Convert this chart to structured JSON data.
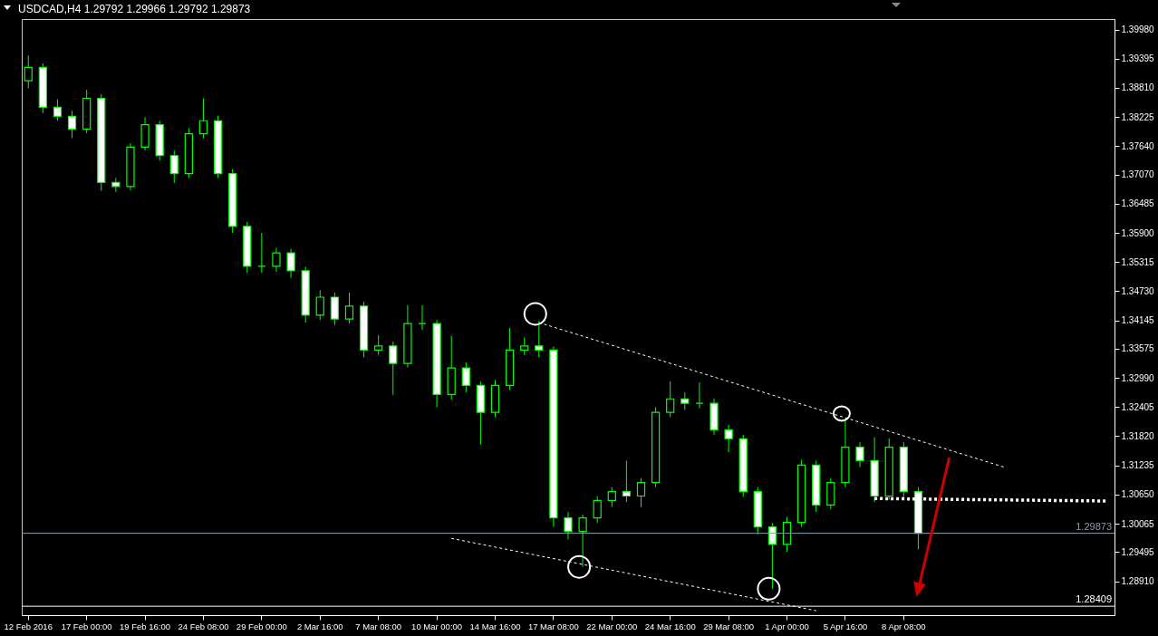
{
  "chart_data": {
    "type": "candlestick",
    "title": "USDCAD,H4  1.29792 1.29966 1.29792 1.29873",
    "color": "#00ff00",
    "categories": [
      "12 Feb 2016",
      null,
      null,
      null,
      "17 Feb 00:00",
      null,
      null,
      null,
      "19 Feb 16:00",
      null,
      null,
      null,
      "24 Feb 08:00",
      null,
      null,
      null,
      "29 Feb 00:00",
      null,
      null,
      null,
      "2 Mar 16:00",
      null,
      null,
      null,
      "7 Mar 08:00",
      null,
      null,
      null,
      "10 Mar 00:00",
      null,
      null,
      null,
      "14 Mar 16:00",
      null,
      null,
      null,
      "17 Mar 08:00",
      null,
      null,
      null,
      "22 Mar 00:00",
      null,
      null,
      null,
      "24 Mar 16:00",
      null,
      null,
      null,
      "29 Mar 08:00",
      null,
      null,
      null,
      "1 Apr 00:00",
      null,
      null,
      null,
      "5 Apr 16:00",
      null,
      null,
      null,
      "8 Apr 08:00",
      null,
      null,
      null,
      null,
      null,
      null,
      null,
      null,
      null,
      null,
      null,
      null,
      null,
      null
    ],
    "ohlc": [
      [
        1.3895,
        1.3946,
        1.388,
        1.3922
      ],
      [
        1.3922,
        1.393,
        1.383,
        1.3842
      ],
      [
        1.3842,
        1.3858,
        1.3815,
        1.3824
      ],
      [
        1.3824,
        1.3835,
        1.378,
        1.3798
      ],
      [
        1.3798,
        1.3877,
        1.379,
        1.386
      ],
      [
        1.386,
        1.3868,
        1.3674,
        1.3691
      ],
      [
        1.3691,
        1.37,
        1.3672,
        1.3683
      ],
      [
        1.3683,
        1.377,
        1.3675,
        1.3762
      ],
      [
        1.3762,
        1.3822,
        1.3755,
        1.3807
      ],
      [
        1.3807,
        1.3815,
        1.3735,
        1.3745
      ],
      [
        1.3745,
        1.3755,
        1.369,
        1.3709
      ],
      [
        1.3709,
        1.38,
        1.37,
        1.3789
      ],
      [
        1.3789,
        1.386,
        1.378,
        1.3815
      ],
      [
        1.3815,
        1.3825,
        1.37,
        1.3709
      ],
      [
        1.3709,
        1.3718,
        1.359,
        1.3603
      ],
      [
        1.3603,
        1.3612,
        1.351,
        1.3523
      ],
      [
        1.3523,
        1.359,
        1.351,
        1.3523
      ],
      [
        1.3523,
        1.356,
        1.3512,
        1.355
      ],
      [
        1.355,
        1.3558,
        1.35,
        1.3514
      ],
      [
        1.3514,
        1.3522,
        1.341,
        1.3425
      ],
      [
        1.3425,
        1.3475,
        1.3415,
        1.3461
      ],
      [
        1.3461,
        1.347,
        1.3405,
        1.3417
      ],
      [
        1.3417,
        1.347,
        1.3408,
        1.3443
      ],
      [
        1.3443,
        1.3452,
        1.334,
        1.3355
      ],
      [
        1.3355,
        1.3385,
        1.3345,
        1.3363
      ],
      [
        1.3363,
        1.3372,
        1.3265,
        1.3328
      ],
      [
        1.3328,
        1.3445,
        1.332,
        1.3408
      ],
      [
        1.3408,
        1.3445,
        1.3395,
        1.3408
      ],
      [
        1.3408,
        1.3415,
        1.324,
        1.3266
      ],
      [
        1.3266,
        1.3383,
        1.3255,
        1.3319
      ],
      [
        1.3319,
        1.333,
        1.327,
        1.3284
      ],
      [
        1.3284,
        1.3292,
        1.3165,
        1.323
      ],
      [
        1.323,
        1.3295,
        1.322,
        1.3284
      ],
      [
        1.3284,
        1.3399,
        1.3275,
        1.3355
      ],
      [
        1.3355,
        1.338,
        1.3345,
        1.3363
      ],
      [
        1.3363,
        1.3413,
        1.334,
        1.3355
      ],
      [
        1.3355,
        1.3362,
        1.3,
        1.3018
      ],
      [
        1.3018,
        1.303,
        1.2975,
        1.2991
      ],
      [
        1.2991,
        1.3025,
        1.292,
        1.3018
      ],
      [
        1.3018,
        1.3062,
        1.3008,
        1.3053
      ],
      [
        1.3053,
        1.308,
        1.304,
        1.3071
      ],
      [
        1.3071,
        1.3133,
        1.305,
        1.3062
      ],
      [
        1.3062,
        1.3098,
        1.304,
        1.3089
      ],
      [
        1.3089,
        1.324,
        1.308,
        1.323
      ],
      [
        1.323,
        1.3292,
        1.322,
        1.3257
      ],
      [
        1.3257,
        1.327,
        1.3235,
        1.3248
      ],
      [
        1.3248,
        1.329,
        1.3238,
        1.3248
      ],
      [
        1.3248,
        1.3258,
        1.3185,
        1.3195
      ],
      [
        1.3195,
        1.3205,
        1.315,
        1.3177
      ],
      [
        1.3177,
        1.3185,
        1.306,
        1.3071
      ],
      [
        1.3071,
        1.308,
        1.2985,
        1.3
      ],
      [
        1.3,
        1.3008,
        1.2876,
        1.2965
      ],
      [
        1.2965,
        1.302,
        1.295,
        1.3009
      ],
      [
        1.3009,
        1.3135,
        1.3,
        1.3124
      ],
      [
        1.3124,
        1.3133,
        1.303,
        1.3044
      ],
      [
        1.3044,
        1.3098,
        1.3035,
        1.3089
      ],
      [
        1.3089,
        1.3213,
        1.308,
        1.316
      ],
      [
        1.316,
        1.317,
        1.312,
        1.3133
      ],
      [
        1.3133,
        1.318,
        1.305,
        1.3062
      ],
      [
        1.3062,
        1.3178,
        1.3055,
        1.316
      ],
      [
        1.316,
        1.317,
        1.306,
        1.3071
      ],
      [
        1.3071,
        1.308,
        1.2955,
        1.2987
      ],
      null,
      null,
      null,
      null,
      null,
      null,
      null,
      null,
      null,
      null,
      null,
      null,
      null
    ],
    "series": [
      {
        "type": "line",
        "color": "#ffffff",
        "line_style": "dashed",
        "values": [
          null,
          null,
          null,
          null,
          null,
          null,
          null,
          null,
          null,
          null,
          null,
          null,
          null,
          null,
          null,
          null,
          null,
          null,
          null,
          null,
          null,
          null,
          null,
          null,
          null,
          null,
          null,
          null,
          null,
          null,
          null,
          null,
          null,
          null,
          null,
          1.341,
          null,
          null,
          null,
          null,
          null,
          null,
          null,
          null,
          null,
          null,
          null,
          null,
          null,
          null,
          null,
          null,
          null,
          null,
          null,
          null,
          null,
          null,
          null,
          null,
          null,
          null,
          null,
          null,
          null,
          null,
          null,
          1.3119,
          null,
          null,
          null,
          null,
          null,
          null,
          null
        ]
      },
      {
        "type": "line",
        "color": "#ffffff",
        "line_style": "dashed",
        "values": [
          null,
          null,
          null,
          null,
          null,
          null,
          null,
          null,
          null,
          null,
          null,
          null,
          null,
          null,
          null,
          null,
          null,
          null,
          null,
          null,
          null,
          null,
          null,
          null,
          null,
          null,
          null,
          null,
          null,
          1.2977,
          null,
          null,
          null,
          null,
          null,
          null,
          null,
          null,
          null,
          null,
          null,
          null,
          null,
          null,
          null,
          null,
          null,
          null,
          null,
          null,
          null,
          null,
          null,
          null,
          1.2832,
          null,
          null,
          null,
          null,
          null,
          null,
          null,
          null,
          null,
          null,
          null,
          null,
          null,
          null,
          null,
          null,
          null,
          null,
          null,
          null
        ]
      },
      {
        "type": "line",
        "color": "#ffffff",
        "line_style": "dotted",
        "values": [
          null,
          null,
          null,
          null,
          null,
          null,
          null,
          null,
          null,
          null,
          null,
          null,
          null,
          null,
          null,
          null,
          null,
          null,
          null,
          null,
          null,
          null,
          null,
          null,
          null,
          null,
          null,
          null,
          null,
          null,
          null,
          null,
          null,
          null,
          null,
          null,
          null,
          null,
          null,
          null,
          null,
          null,
          null,
          null,
          null,
          null,
          null,
          null,
          null,
          null,
          null,
          null,
          null,
          null,
          null,
          null,
          null,
          null,
          1.3057,
          null,
          null,
          null,
          null,
          null,
          null,
          null,
          null,
          null,
          null,
          null,
          null,
          null,
          null,
          null,
          1.3052
        ]
      }
    ],
    "ylim": [
      1.2823,
      1.4019
    ],
    "yticks": [
      {
        "value": 1.3998,
        "label": "1.39980"
      },
      1.39395,
      {
        "value": 1.3881,
        "label": "1.38810"
      },
      1.38225,
      {
        "value": 1.3764,
        "label": "1.37640"
      },
      {
        "value": 1.3707,
        "label": "1.37070"
      },
      1.36485,
      {
        "value": 1.359,
        "label": "1.35900"
      },
      1.35315,
      {
        "value": 1.3473,
        "label": "1.34730"
      },
      1.34145,
      1.33575,
      {
        "value": 1.3299,
        "label": "1.32990"
      },
      1.32405,
      {
        "value": 1.3182,
        "label": "1.31820"
      },
      1.31235,
      {
        "value": 1.3065,
        "label": "1.30650"
      },
      1.30065,
      1.29495,
      {
        "value": 1.2891,
        "label": "1.28910"
      }
    ],
    "ref_lines": [
      {
        "axis": "y",
        "value": 1.29873,
        "label": "1.29873",
        "color": "#8a9aaa"
      },
      {
        "axis": "y",
        "value": 1.28409,
        "label": "1.28409",
        "color": "#ffffff"
      }
    ],
    "grid": false
  }
}
